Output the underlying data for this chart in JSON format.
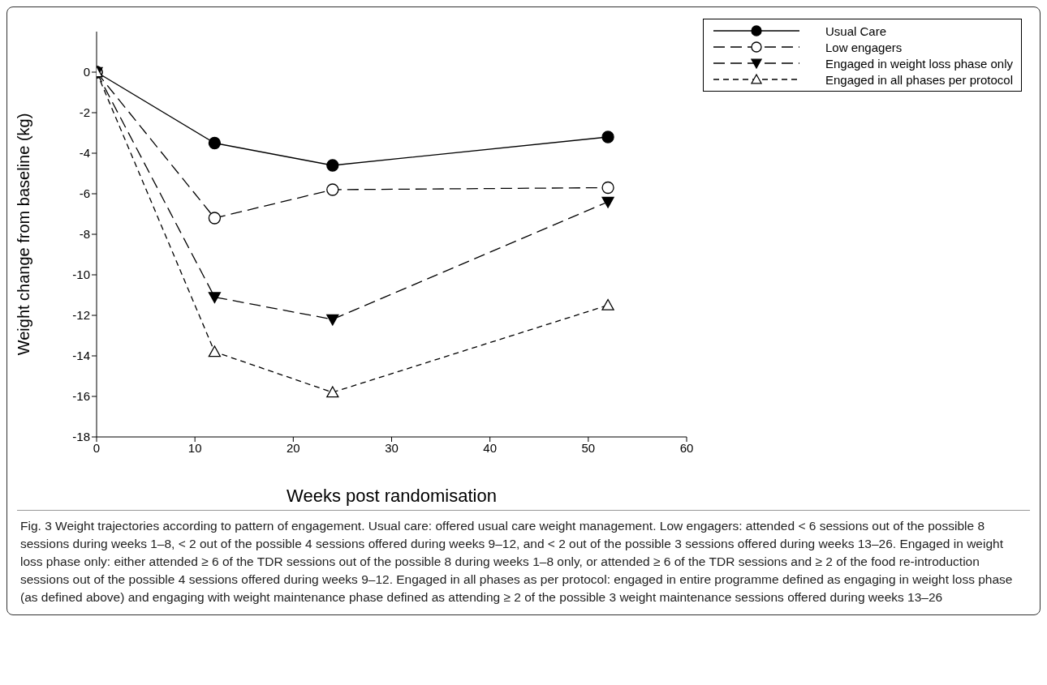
{
  "chart_data": {
    "type": "line",
    "xlabel": "Weeks post randomisation",
    "ylabel": "Weight change from baseline (kg)",
    "x": [
      0,
      12,
      24,
      52
    ],
    "series": [
      {
        "name": "Usual Care",
        "color": "#000000",
        "values": [
          0,
          -3.5,
          -4.6,
          -3.2
        ],
        "marker": "circle",
        "line_style": "solid"
      },
      {
        "name": "Low engagers",
        "color": "#000000",
        "values": [
          0,
          -7.2,
          -5.8,
          -5.7
        ],
        "marker": "circle-open",
        "line_style": "dashed"
      },
      {
        "name": "Engaged in weight loss phase only",
        "color": "#000000",
        "values": [
          0,
          -11.1,
          -12.2,
          -6.4
        ],
        "marker": "triangle-down",
        "line_style": "dashed"
      },
      {
        "name": "Engaged in all phases per protocol",
        "color": "#000000",
        "values": [
          0,
          -13.8,
          -15.8,
          -11.5
        ],
        "marker": "triangle-open",
        "line_style": "dotted"
      }
    ],
    "xlim": [
      0,
      60
    ],
    "xticks": [
      0,
      10,
      20,
      30,
      40,
      50,
      60
    ],
    "ylim": [
      -18,
      2
    ],
    "yticks": [
      -18,
      -16,
      -14,
      -12,
      -10,
      -8,
      -6,
      -4,
      -2,
      0
    ],
    "grid": false,
    "legend": "top right",
    "annotations": [
      "Fig. 3 Weight trajectories according to pattern of engagement. Usual care: offered usual care weight management. Low engagers: attended < 6 sessions out of the possible 8 sessions during weeks 1–8, < 2 out of the possible 4 sessions offered during weeks 9–12, and < 2 out of the possible 3 sessions offered during weeks 13–26. Engaged in weight loss phase only: either attended ≥ 6 of the TDR sessions out of the possible 8 during weeks 1–8 only, or attended ≥ 6 of the TDR sessions and ≥ 2 of the food re-introduction sessions out of the possible 4 sessions offered during weeks 9–12. Engaged in all phases as per protocol: engaged in entire programme defined as engaging in weight loss phase (as defined above) and engaging with weight maintenance phase defined as attending ≥ 2 of the possible 3 weight maintenance sessions offered during weeks 13–26"
    ]
  }
}
